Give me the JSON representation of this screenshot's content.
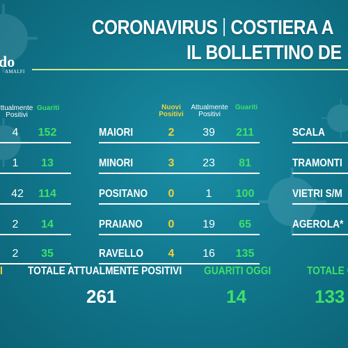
{
  "title_line1_a": "CORONAVIRUS",
  "title_line1_b": "COSTIERA A",
  "title_line2": "IL BOLLETTINO DE",
  "logo": {
    "main": "do",
    "sub": "AMALFI"
  },
  "headers": {
    "left": {
      "positivi": "ttualmente\nPositivi",
      "guariti": "Guariti"
    },
    "middle": {
      "nuovi": "Nuovi\nPositivi",
      "positivi": "Attualmente\nPositivi",
      "guariti": "Guariti"
    }
  },
  "left_rows": [
    {
      "positivi": "4",
      "guariti": "152"
    },
    {
      "positivi": "1",
      "guariti": "13"
    },
    {
      "positivi": "42",
      "guariti": "114"
    },
    {
      "positivi": "2",
      "guariti": "14"
    },
    {
      "positivi": "2",
      "guariti": "35"
    }
  ],
  "middle_rows": [
    {
      "name": "MAIORI",
      "nuovi": "2",
      "positivi": "39",
      "guariti": "211"
    },
    {
      "name": "MINORI",
      "nuovi": "3",
      "positivi": "23",
      "guariti": "81"
    },
    {
      "name": "POSITANO",
      "nuovi": "0",
      "positivi": "1",
      "guariti": "100"
    },
    {
      "name": "PRAIANO",
      "nuovi": "0",
      "positivi": "19",
      "guariti": "65"
    },
    {
      "name": "RAVELLO",
      "nuovi": "4",
      "positivi": "16",
      "guariti": "135"
    }
  ],
  "right_rows": [
    {
      "name": "SCALA"
    },
    {
      "name": "TRAMONTI"
    },
    {
      "name": "VIETRI S/M"
    },
    {
      "name": "AGEROLA*"
    }
  ],
  "totals": {
    "left_fragment": "I",
    "positivi_label": "TOTALE ATTUALMENTE POSITIVI",
    "positivi_value": "261",
    "guariti_oggi_label": "GUARITI OGGI",
    "guariti_oggi_value": "14",
    "totale_guariti_label": "TOTALE G",
    "totale_guariti_value": "133"
  }
}
